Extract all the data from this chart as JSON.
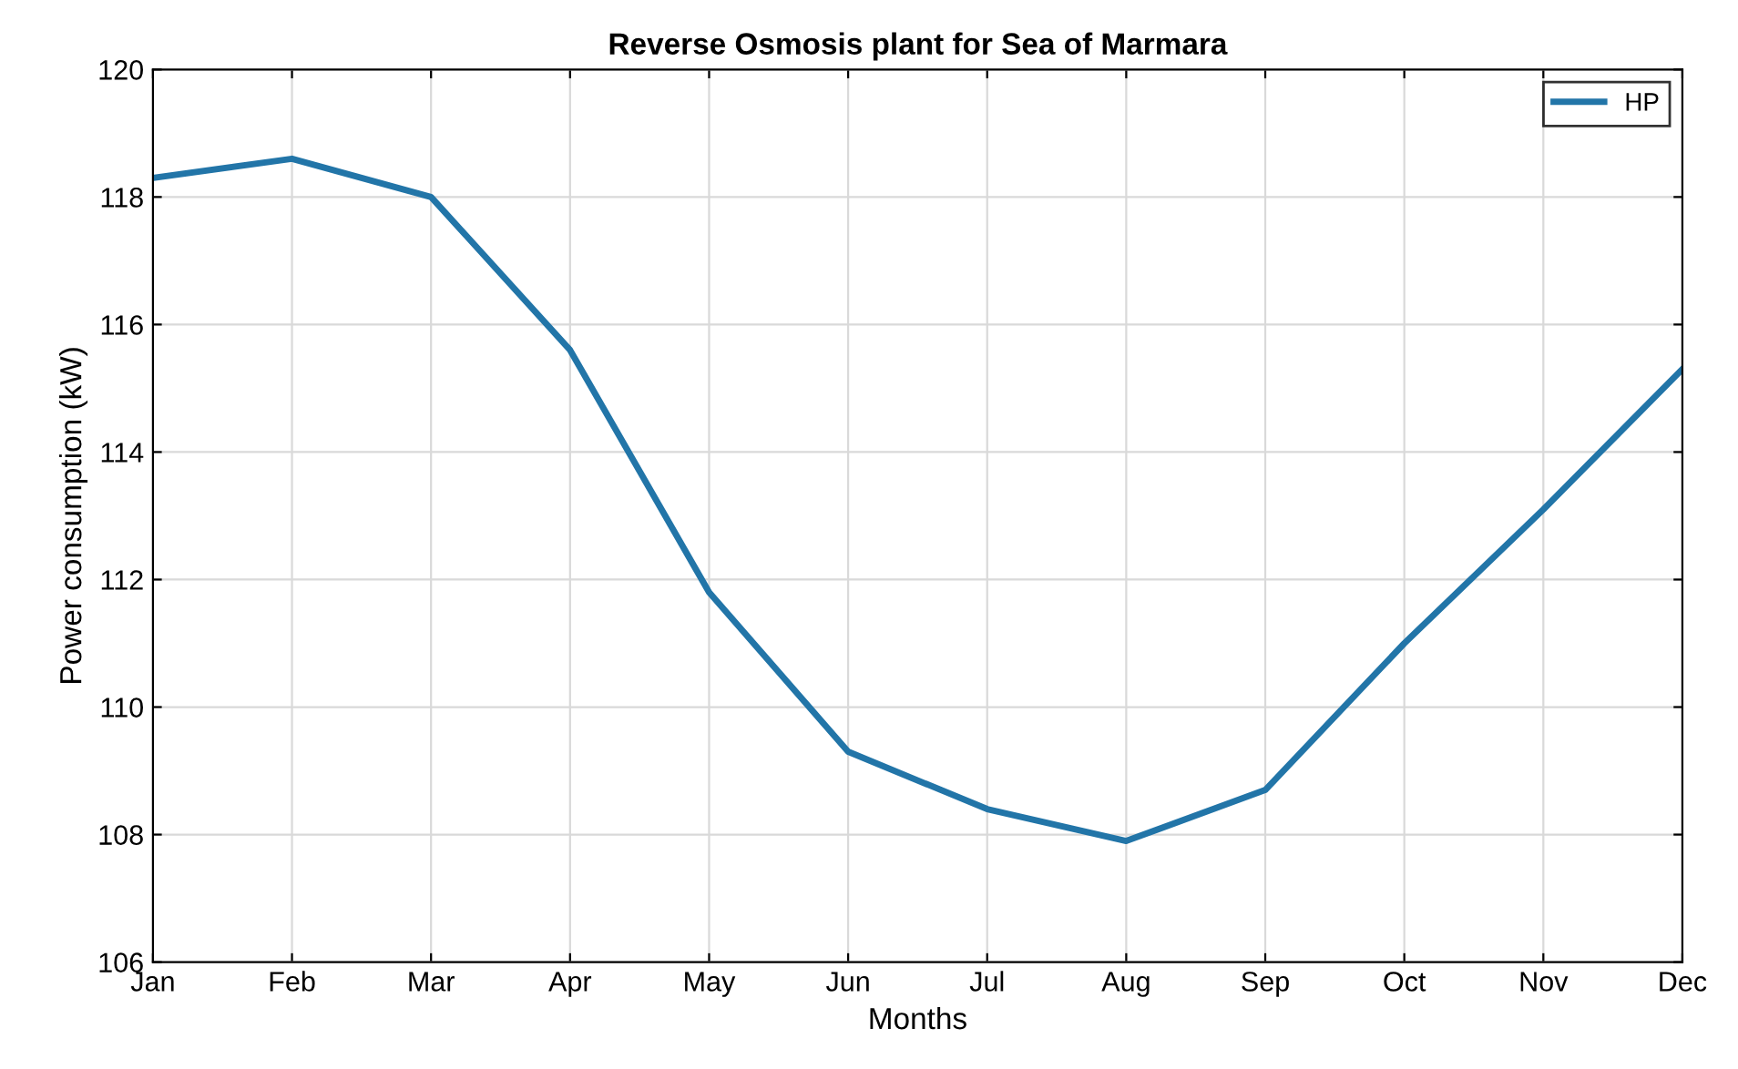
{
  "chart_data": {
    "type": "line",
    "title": "Reverse Osmosis plant for Sea of Marmara",
    "xlabel": "Months",
    "ylabel": "Power consumption (kW)",
    "categories": [
      "Jan",
      "Feb",
      "Mar",
      "Apr",
      "May",
      "Jun",
      "Jul",
      "Aug",
      "Sep",
      "Oct",
      "Nov",
      "Dec"
    ],
    "series": [
      {
        "name": "HP",
        "color": "#2275a8",
        "values": [
          118.3,
          118.6,
          118.0,
          115.6,
          111.8,
          109.3,
          108.4,
          107.9,
          108.7,
          111.0,
          113.1,
          115.3
        ]
      }
    ],
    "ylim": [
      106,
      120
    ],
    "yticks": [
      106,
      108,
      110,
      112,
      114,
      116,
      118,
      120
    ],
    "grid": true,
    "legend": "top right",
    "marker": "none",
    "line_style": "solid"
  }
}
